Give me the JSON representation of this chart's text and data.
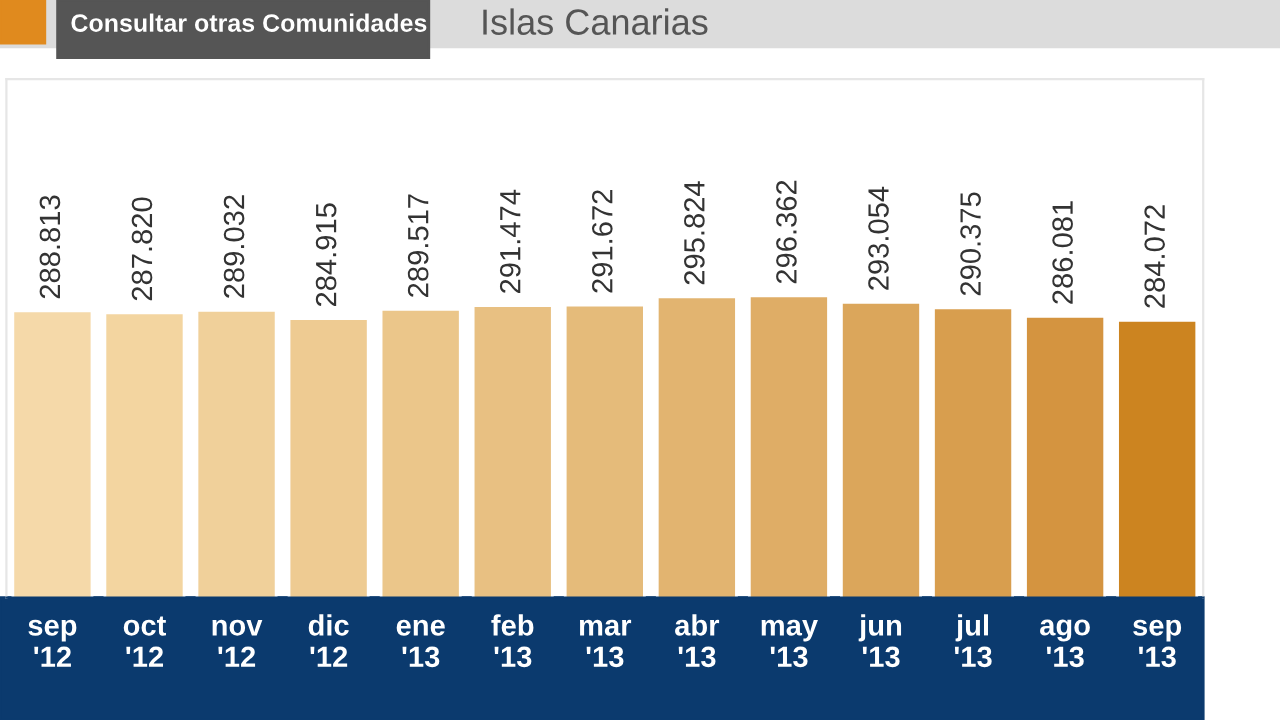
{
  "chart_data": {
    "type": "bar",
    "title": "Islas Canarias",
    "annotations": [
      "Consultar otras Comunidades"
    ],
    "categories": [
      "sep\n'12",
      "oct\n'12",
      "nov\n'12",
      "dic\n'12",
      "ene\n'13",
      "feb\n'13",
      "mar\n'13",
      "abr\n'13",
      "may\n'13",
      "jun\n'13",
      "jul\n'13",
      "ago\n'13",
      "sep\n'13"
    ],
    "values": [
      288813,
      287820,
      289032,
      284915,
      289517,
      291474,
      291672,
      295824,
      296362,
      293054,
      290375,
      286081,
      284072
    ],
    "value_labels": [
      "288.813",
      "287.820",
      "289.032",
      "284.915",
      "289.517",
      "291.474",
      "291.672",
      "295.824",
      "296.362",
      "293.054",
      "290.375",
      "286.081",
      "284.072"
    ],
    "colors": [
      "#f5d9a9",
      "#f3d5a0",
      "#f0d09a",
      "#eecb92",
      "#ebc68a",
      "#e8c082",
      "#e5bb7a",
      "#e2b470",
      "#dfad66",
      "#dba65b",
      "#d89e4e",
      "#d49440",
      "#cc8420"
    ],
    "ylim": [
      145000,
      405000
    ],
    "tick_labels": "x"
  }
}
